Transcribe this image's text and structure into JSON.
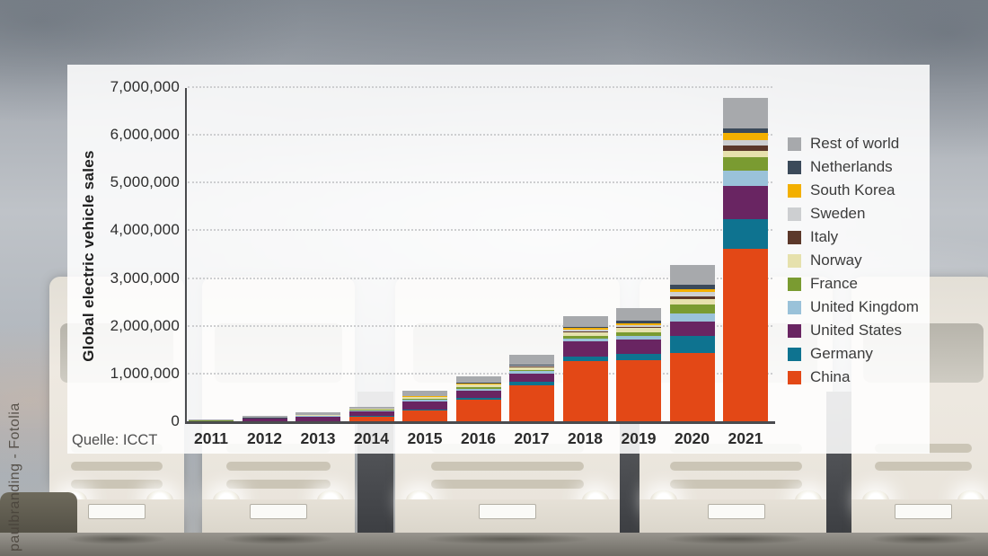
{
  "watermark": "paulbranding - Fotolia",
  "source": "Quelle: ICCT",
  "chart_data": {
    "type": "bar",
    "stacked": true,
    "title": "",
    "ylabel": "Global electric vehicle sales",
    "xlabel": "",
    "categories": [
      "2011",
      "2012",
      "2013",
      "2014",
      "2015",
      "2016",
      "2017",
      "2018",
      "2019",
      "2020",
      "2021"
    ],
    "ylim": [
      0,
      7000000
    ],
    "ytick_step": 1000000,
    "ytick_labels": [
      "0",
      "1,000,000",
      "2,000,000",
      "3,000,000",
      "4,000,000",
      "5,000,000",
      "6,000,000",
      "7,000,000"
    ],
    "grid": "horizontal-dotted",
    "legend": {
      "position": "right",
      "order": "reverse-of-stack"
    },
    "series": [
      {
        "name": "China",
        "color": "#e34816",
        "values": [
          5000,
          12000,
          18000,
          120000,
          240000,
          480000,
          780000,
          1280000,
          1300000,
          1450000,
          3630000
        ]
      },
      {
        "name": "Germany",
        "color": "#0e7390",
        "values": [
          2000,
          3000,
          7000,
          13000,
          24000,
          25000,
          60000,
          88000,
          138000,
          360000,
          620000
        ]
      },
      {
        "name": "United States",
        "color": "#692562",
        "values": [
          18000,
          53000,
          97000,
          100000,
          176000,
          160000,
          185000,
          326000,
          301000,
          295000,
          700000
        ]
      },
      {
        "name": "United Kingdom",
        "color": "#9ac2d9",
        "values": [
          1000,
          2000,
          4000,
          15000,
          29000,
          38000,
          40000,
          50000,
          75000,
          176000,
          315000
        ]
      },
      {
        "name": "France",
        "color": "#7a9b31",
        "values": [
          3000,
          6000,
          9000,
          12000,
          23000,
          36000,
          35000,
          63000,
          75000,
          185000,
          280000
        ]
      },
      {
        "name": "Norway",
        "color": "#e6e1ad",
        "values": [
          2000,
          4000,
          8000,
          20000,
          34000,
          45000,
          55000,
          75000,
          81000,
          108000,
          140000
        ]
      },
      {
        "name": "Italy",
        "color": "#5c382a",
        "values": [
          0,
          1000,
          1000,
          1000,
          2000,
          3000,
          4000,
          10000,
          17000,
          62000,
          115000
        ]
      },
      {
        "name": "Sweden",
        "color": "#cdcfd1",
        "values": [
          0,
          1000,
          2000,
          5000,
          9000,
          13000,
          19000,
          38000,
          44000,
          95000,
          110000
        ]
      },
      {
        "name": "South Korea",
        "color": "#f3b000",
        "values": [
          0,
          1000,
          1000,
          1000,
          3000,
          5000,
          13000,
          44000,
          44000,
          60000,
          145000
        ]
      },
      {
        "name": "Netherlands",
        "color": "#3b4a5a",
        "values": [
          1000,
          5000,
          6000,
          4000,
          10000,
          22000,
          9000,
          31000,
          50000,
          81000,
          105000
        ]
      },
      {
        "name": "Rest of world",
        "color": "#a7a9ac",
        "values": [
          18000,
          42000,
          57000,
          35000,
          110000,
          133000,
          210000,
          219000,
          263000,
          420000,
          640000
        ]
      }
    ]
  }
}
